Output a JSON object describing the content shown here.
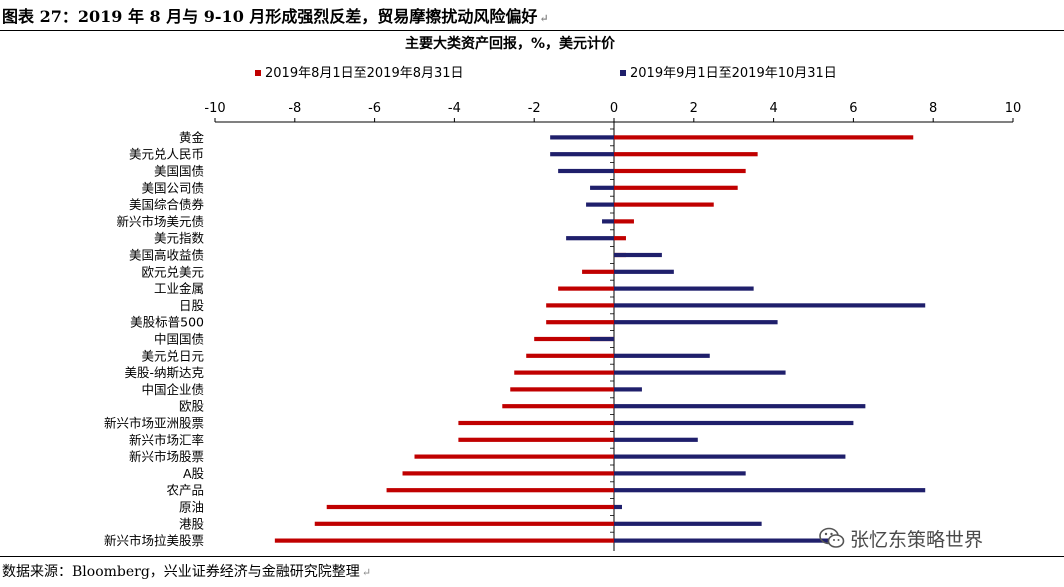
{
  "figure_title": "图表 27：2019 年 8 月与 9-10 月形成强烈反差，贸易摩擦扰动风险偏好",
  "source_note": "数据来源：Bloomberg，兴业证券经济与金融研究院整理",
  "paragraph_mark": "↵",
  "watermark": {
    "text": "张忆东策略世界",
    "icon": "wechat-icon"
  },
  "colors": {
    "series1": "#c00000",
    "series2": "#1f1f6b"
  },
  "chart_data": {
    "type": "bar",
    "orientation": "horizontal",
    "title": "主要大类资产回报，%，美元计价",
    "legend_position": "top",
    "xlim": [
      -10,
      10
    ],
    "xticks": [
      -10,
      -8,
      -6,
      -4,
      -2,
      0,
      2,
      4,
      6,
      8,
      10
    ],
    "grid": false,
    "categories": [
      "黄金",
      "美元兑人民币",
      "美国国债",
      "美国公司债",
      "美国综合债券",
      "新兴市场美元债",
      "美元指数",
      "美国高收益债",
      "欧元兑美元",
      "工业金属",
      "日股",
      "美股标普500",
      "中国国债",
      "美元兑日元",
      "美股-纳斯达克",
      "中国企业债",
      "欧股",
      "新兴市场亚洲股票",
      "新兴市场汇率",
      "新兴市场股票",
      "A股",
      "农产品",
      "原油",
      "港股",
      "新兴市场拉美股票"
    ],
    "series": [
      {
        "name": "2019年8月1日至2019年8月31日",
        "values": [
          7.5,
          3.6,
          3.3,
          3.1,
          2.5,
          0.5,
          0.3,
          0.3,
          -0.8,
          -1.4,
          -1.7,
          -1.7,
          -2.0,
          -2.2,
          -2.5,
          -2.6,
          -2.8,
          -3.9,
          -3.9,
          -5.0,
          -5.3,
          -5.7,
          -7.2,
          -7.5,
          -8.5
        ]
      },
      {
        "name": "2019年9月1日至2019年10月31日",
        "values": [
          -1.6,
          -1.6,
          -1.4,
          -0.6,
          -0.7,
          -0.3,
          -1.2,
          1.2,
          1.5,
          3.5,
          7.8,
          4.1,
          -0.6,
          2.4,
          4.3,
          0.7,
          6.3,
          6.0,
          2.1,
          5.8,
          3.3,
          7.8,
          0.2,
          3.7,
          5.7
        ]
      }
    ]
  }
}
